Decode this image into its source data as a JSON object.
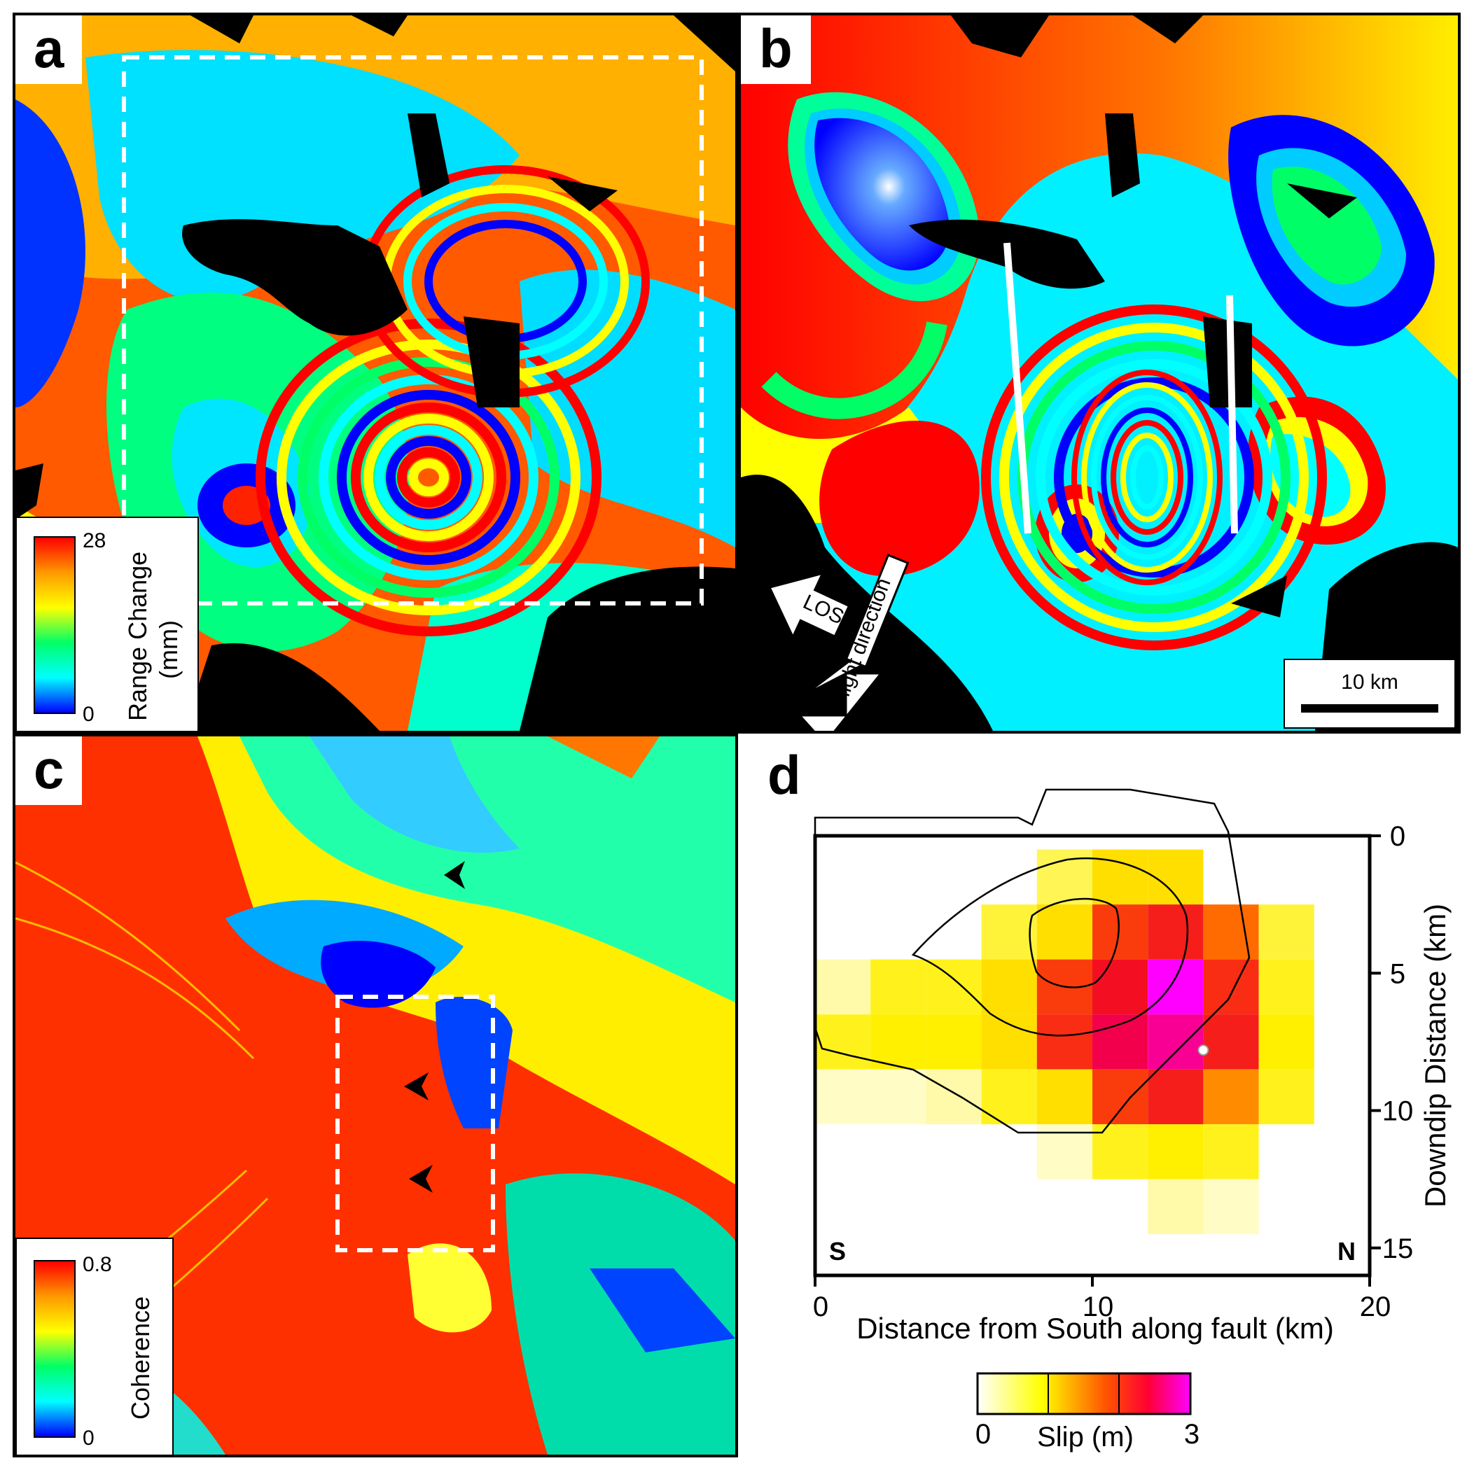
{
  "panels": {
    "a": {
      "label": "a",
      "colorbar": {
        "max": "28",
        "min": "0",
        "title": "Range Change\n(mm)",
        "title_line1": "Range Change",
        "title_line2": "(mm)"
      }
    },
    "b": {
      "label": "b",
      "los_label": "LOS",
      "flight_label": "Flight direction",
      "scalebar_label": "10 km"
    },
    "c": {
      "label": "c",
      "colorbar": {
        "max": "0.8",
        "min": "0",
        "title": "Coherence"
      }
    },
    "d": {
      "label": "d",
      "corner_left": "S",
      "corner_right": "N",
      "colorbar": {
        "min": "0",
        "max": "3",
        "title": "Slip (m)"
      }
    }
  },
  "colors": {
    "rainbow": [
      "#0000ff",
      "#00ffff",
      "#00ff66",
      "#ffff00",
      "#ff9900",
      "#ff0000"
    ],
    "slip": [
      "#ffffff",
      "#ffff00",
      "#ff6600",
      "#ff0033",
      "#ff00ff"
    ]
  },
  "chart_data": {
    "type": "heatmap",
    "xlabel": "Distance from South along fault (km)",
    "ylabel": "Downdip Distance (km)",
    "xlim": [
      0,
      20
    ],
    "ylim": [
      0,
      16
    ],
    "xticks": [
      "0",
      "10",
      "20"
    ],
    "yticks": [
      "0",
      "5",
      "10",
      "15"
    ],
    "cell_size_km": [
      2,
      2
    ],
    "slip_m_rows": [
      [
        0,
        0,
        0,
        0,
        0.6,
        1.0,
        1.0,
        0,
        0,
        0
      ],
      [
        0,
        0,
        0,
        0.7,
        1.0,
        2.0,
        2.2,
        1.7,
        0.7,
        0
      ],
      [
        0.3,
        0.8,
        0.8,
        1.0,
        2.0,
        2.3,
        3.0,
        2.1,
        0.8,
        0
      ],
      [
        0.8,
        0.9,
        0.9,
        1.0,
        2.1,
        2.5,
        2.7,
        2.2,
        0.9,
        0
      ],
      [
        0.2,
        0.2,
        0.3,
        0.8,
        1.0,
        2.0,
        2.2,
        1.5,
        0.8,
        0
      ],
      [
        0,
        0,
        0,
        0,
        0.2,
        0.8,
        0.9,
        0.8,
        0,
        0
      ],
      [
        0,
        0,
        0,
        0,
        0,
        0,
        0.3,
        0.2,
        0,
        0
      ]
    ],
    "hypocenter_km": [
      14,
      7.8
    ]
  }
}
